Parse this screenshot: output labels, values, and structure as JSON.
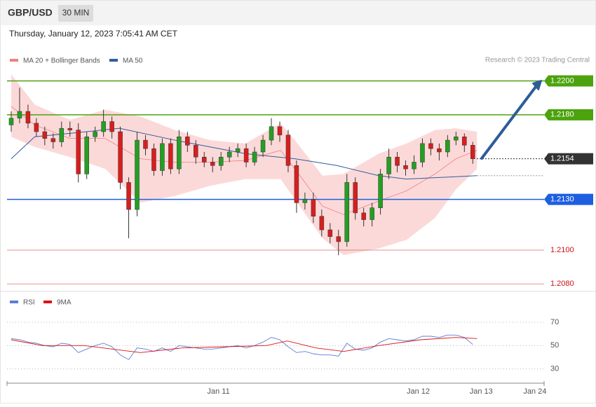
{
  "header": {
    "symbol": "GBP/USD",
    "interval": "30 MIN",
    "timestamp": "Thursday, January 12, 2023 7:05:41 AM CET",
    "credit": "Research © 2023 Trading Central"
  },
  "chart_data": [
    {
      "type": "candlestick",
      "open": [
        1.2174,
        1.2178,
        1.2182,
        1.2175,
        1.217,
        1.2166,
        1.2164,
        1.2172,
        1.2171,
        1.2145,
        1.2167,
        1.217,
        1.2176,
        1.217,
        1.214,
        1.2124,
        1.2165,
        1.216,
        1.2147,
        1.2163,
        1.2148,
        1.2167,
        1.2162,
        1.2155,
        1.2152,
        1.215,
        1.2155,
        1.2158,
        1.216,
        1.2152,
        1.2158,
        1.2165,
        1.2173,
        1.2168,
        1.215,
        1.2128,
        1.213,
        1.212,
        1.2112,
        1.2108,
        1.2105,
        1.214,
        1.2122,
        1.2118,
        1.2125,
        1.2145,
        1.2155,
        1.215,
        1.2148,
        1.2152,
        1.2163,
        1.216,
        1.2158,
        1.2165,
        1.2167,
        1.2162
      ],
      "high": [
        1.2182,
        1.2196,
        1.2186,
        1.2178,
        1.2173,
        1.2169,
        1.2176,
        1.2176,
        1.2175,
        1.217,
        1.2173,
        1.2183,
        1.2179,
        1.2173,
        1.2143,
        1.217,
        1.2168,
        1.2163,
        1.2166,
        1.2166,
        1.2171,
        1.217,
        1.2165,
        1.2158,
        1.2155,
        1.2158,
        1.2161,
        1.2163,
        1.2163,
        1.2161,
        1.2168,
        1.2178,
        1.2176,
        1.2171,
        1.2153,
        1.2134,
        1.2134,
        1.2124,
        1.2116,
        1.2112,
        1.2145,
        1.2143,
        1.2125,
        1.2128,
        1.2148,
        1.216,
        1.2158,
        1.2153,
        1.2156,
        1.2166,
        1.2166,
        1.2163,
        1.2168,
        1.217,
        1.2169,
        1.2164
      ],
      "low": [
        1.217,
        1.2175,
        1.2172,
        1.2167,
        1.2162,
        1.216,
        1.2161,
        1.2167,
        1.214,
        1.2142,
        1.2164,
        1.2167,
        1.2166,
        1.2136,
        1.2107,
        1.212,
        1.2156,
        1.2144,
        1.2144,
        1.2145,
        1.2145,
        1.2158,
        1.2151,
        1.2149,
        1.2146,
        1.2147,
        1.2152,
        1.2155,
        1.2149,
        1.215,
        1.2155,
        1.2162,
        1.2164,
        1.2146,
        1.2122,
        1.2124,
        1.2116,
        1.2108,
        1.2104,
        1.2097,
        1.2102,
        1.2118,
        1.2114,
        1.2114,
        1.2121,
        1.2142,
        1.2146,
        1.2144,
        1.2145,
        1.2149,
        1.2156,
        1.2153,
        1.2155,
        1.2162,
        1.2158,
        1.2151
      ],
      "close": [
        1.2178,
        1.2182,
        1.2175,
        1.217,
        1.2166,
        1.2164,
        1.2172,
        1.2171,
        1.2145,
        1.2167,
        1.217,
        1.2176,
        1.217,
        1.214,
        1.2124,
        1.2165,
        1.216,
        1.2147,
        1.2163,
        1.2148,
        1.2167,
        1.2162,
        1.2155,
        1.2152,
        1.215,
        1.2155,
        1.2158,
        1.216,
        1.2152,
        1.2158,
        1.2165,
        1.2173,
        1.2168,
        1.215,
        1.2128,
        1.213,
        1.212,
        1.2112,
        1.2108,
        1.2105,
        1.214,
        1.2122,
        1.2118,
        1.2125,
        1.2145,
        1.2155,
        1.215,
        1.2148,
        1.2152,
        1.2163,
        1.216,
        1.2158,
        1.2165,
        1.2167,
        1.2162,
        1.2154
      ],
      "up_color": "#22a022",
      "down_color": "#d81e1e",
      "series": [
        {
          "name": "MA 20 + Bollinger Bands",
          "color": "#f08080",
          "band_color": "#fcd9d9",
          "x": [
            0,
            2.8,
            7,
            11.2,
            15.4,
            19.5,
            23.7,
            27.9,
            32.1,
            33.8,
            37.1,
            39.6,
            43.8,
            47.1,
            50.5,
            53,
            55.5
          ],
          "values": [
            1.2185,
            1.2174,
            1.2166,
            1.2166,
            1.2154,
            1.2152,
            1.2152,
            1.2153,
            1.2159,
            1.2148,
            1.2126,
            1.2121,
            1.2129,
            1.2135,
            1.2145,
            1.2154,
            1.2159
          ],
          "upper": [
            1.2204,
            1.2186,
            1.2177,
            1.2183,
            1.2179,
            1.2171,
            1.2165,
            1.2163,
            1.2175,
            1.2165,
            1.2144,
            1.2145,
            1.2157,
            1.2163,
            1.2171,
            1.2172,
            1.217
          ],
          "lower": [
            1.2167,
            1.2161,
            1.2155,
            1.2148,
            1.2128,
            1.2132,
            1.2138,
            1.2142,
            1.2142,
            1.213,
            1.2107,
            1.2097,
            1.2101,
            1.2106,
            1.2119,
            1.2136,
            1.2148
          ]
        },
        {
          "name": "MA 50",
          "color": "#2f5d9e",
          "x": [
            0,
            2.8,
            7,
            12.9,
            19.5,
            23.7,
            27.9,
            33.8,
            38.8,
            43.8,
            47.1,
            55.5
          ],
          "values": [
            1.2154,
            1.2167,
            1.2169,
            1.2172,
            1.2165,
            1.2161,
            1.2157,
            1.2154,
            1.215,
            1.2144,
            1.2142,
            1.2144
          ]
        }
      ],
      "levels": [
        {
          "value": 1.22,
          "label": "1.2200",
          "color": "#4ca30d",
          "tag": true
        },
        {
          "value": 1.218,
          "label": "1.2180",
          "color": "#4ca30d",
          "tag": true
        },
        {
          "value": 1.2154,
          "label": "1.2154",
          "color": "#333333",
          "tag": true,
          "dotted": true
        },
        {
          "value": 1.213,
          "label": "1.2130",
          "color": "#1e5fe0",
          "tag": true
        },
        {
          "value": 1.21,
          "label": "1.2100",
          "color": "#cc1111",
          "tag": false
        },
        {
          "value": 1.208,
          "label": "1.2080",
          "color": "#cc1111",
          "tag": false
        }
      ],
      "xlim": [
        -0.5,
        63.5
      ],
      "xticks": [
        {
          "value": 24.7,
          "label": "Jan 11"
        },
        {
          "value": 48.5,
          "label": "Jan 12"
        },
        {
          "value": 56,
          "label": "Jan 13"
        },
        {
          "value": 62.4,
          "label": "Jan 24"
        }
      ],
      "ylim": [
        1.2076,
        1.2223
      ]
    },
    {
      "type": "line",
      "series": [
        {
          "name": "RSI",
          "color": "#5b7fd6",
          "x": [
            0,
            1,
            2,
            3,
            4,
            5,
            6,
            7,
            8,
            9,
            10,
            11,
            12,
            13,
            14,
            15,
            16,
            17,
            18,
            19,
            20,
            21,
            22,
            23,
            24,
            25,
            26,
            27,
            28,
            29,
            30,
            31,
            32,
            33,
            34,
            35,
            36,
            37,
            38,
            39,
            40,
            41,
            42,
            43,
            44,
            45,
            46,
            47,
            48,
            49,
            50,
            51,
            52,
            53,
            54,
            55
          ],
          "values": [
            56,
            55,
            53,
            52,
            50,
            49,
            52,
            51,
            44,
            47,
            50,
            52,
            49,
            42,
            38,
            48,
            47,
            45,
            48,
            45,
            50,
            49,
            48,
            47,
            47,
            48,
            49,
            50,
            48,
            50,
            53,
            57,
            55,
            49,
            44,
            45,
            43,
            42,
            42,
            41,
            52,
            47,
            46,
            48,
            53,
            56,
            55,
            54,
            55,
            58,
            58,
            57,
            59,
            59,
            57,
            51
          ]
        },
        {
          "name": "9MA",
          "color": "#dd1111",
          "x": [
            0,
            3.7,
            8.7,
            15.4,
            20.4,
            25.4,
            30.4,
            32.9,
            36.3,
            39.6,
            43.8,
            48.8,
            53,
            55.5
          ],
          "values": [
            55,
            50,
            50,
            44,
            48,
            49,
            50,
            54,
            48,
            45,
            50,
            55,
            57,
            56
          ]
        }
      ],
      "xlim": [
        -0.5,
        63.5
      ],
      "ylim": [
        22,
        79
      ],
      "yticks": [
        70,
        50,
        30
      ]
    }
  ]
}
